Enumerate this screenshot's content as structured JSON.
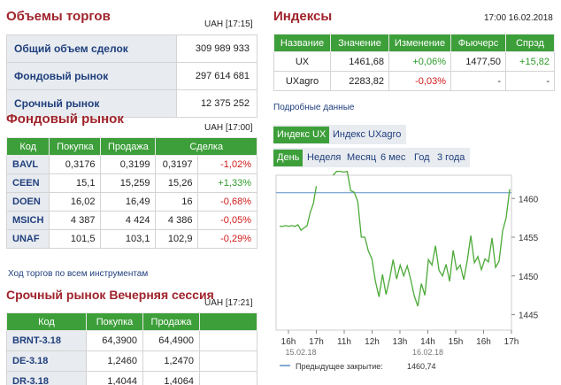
{
  "volumes": {
    "title": "Объемы торгов",
    "meta": "UAH [17:15]",
    "rows": [
      {
        "label": "Общий объем сделок",
        "value": "309 989 933"
      },
      {
        "label": "Фондовый рынок",
        "value": "297 614 681"
      },
      {
        "label": "Срочный рынок",
        "value": "12 375 252"
      }
    ]
  },
  "stock": {
    "title": "Фондовый рынок",
    "meta": "UAH [17:00]",
    "headers": [
      "Код",
      "Покупка",
      "Продажа",
      "Сделка"
    ],
    "rows": [
      {
        "code": "BAVL",
        "buy": "0,3176",
        "sell": "0,3199",
        "deal": "0,3197",
        "change": "-1,02%"
      },
      {
        "code": "CEEN",
        "buy": "15,1",
        "sell": "15,259",
        "deal": "15,26",
        "change": "+1,33%"
      },
      {
        "code": "DOEN",
        "buy": "16,02",
        "sell": "16,49",
        "deal": "16",
        "change": "-0,68%"
      },
      {
        "code": "MSICH",
        "buy": "4 387",
        "sell": "4 424",
        "deal": "4 386",
        "change": "-0,05%"
      },
      {
        "code": "UNAF",
        "buy": "101,5",
        "sell": "103,1",
        "deal": "102,9",
        "change": "-0,29%"
      }
    ],
    "all_link": "Ход торгов по всем инструментам"
  },
  "evening": {
    "title": "Срочный рынок Вечерняя сессия",
    "meta": "UAH [17:21]",
    "headers": [
      "Код",
      "Покупка",
      "Продажа"
    ],
    "rows": [
      {
        "code": "BRNT-3.18",
        "buy": "64,3900",
        "sell": "64,4900"
      },
      {
        "code": "DE-3.18",
        "buy": "1,2460",
        "sell": "1,2470"
      },
      {
        "code": "DR-3.18",
        "buy": "1,4044",
        "sell": "1,4064"
      }
    ]
  },
  "indexes": {
    "title": "Индексы",
    "meta": "17:00 16.02.2018",
    "headers": [
      "Название",
      "Значение",
      "Изменение",
      "Фьючерс",
      "Спрэд"
    ],
    "rows": [
      {
        "name": "UX",
        "value": "1461,68",
        "change": "+0,06%",
        "futures": "1477,50",
        "spread": "+15,82"
      },
      {
        "name": "UXagro",
        "value": "2283,82",
        "change": "-0,03%",
        "futures": "-",
        "spread": "-"
      }
    ],
    "details_link": "Подробные данные",
    "index_tabs": [
      "Индекс UX",
      "Индекс UXagro"
    ],
    "period_tabs": [
      "День",
      "Неделя",
      "Месяц",
      "6 мес",
      "Год",
      "3 года"
    ]
  },
  "chart_data": {
    "type": "line",
    "x_ticks": [
      "16h",
      "17h",
      "11h",
      "12h",
      "13h",
      "14h",
      "15h",
      "16h",
      "17h"
    ],
    "date_labels": [
      "15.02.18",
      "16.02.18"
    ],
    "y_ticks": [
      "1460",
      "1455",
      "1450",
      "1445"
    ],
    "ylim": [
      1443,
      1463
    ],
    "prev_close_label": "Предыдущее закрытие:",
    "prev_close": "1460,74",
    "prev_close_value": 1460.74,
    "series": [
      {
        "values": [
          1456.4,
          1456.4,
          1456.5,
          1456.4,
          1456.5,
          1456.4,
          1456.6,
          1455.9,
          1456.2,
          1456.5,
          1458.2,
          1459.3,
          1461.6
        ]
      },
      {
        "values": [
          1463.0,
          1463.5,
          1463.5,
          1463.4,
          1463.5,
          1461.0,
          1460.8,
          1459.6,
          1455.0,
          1455.0,
          1453.2,
          1452.2,
          1449.3,
          1447.3,
          1450.2,
          1447.6,
          1449.6,
          1452.1,
          1449.6,
          1451.4,
          1450.0,
          1451.3,
          1449.5,
          1447.4,
          1446.1,
          1449.0,
          1447.5,
          1452.1,
          1451.4,
          1453.9,
          1450.7,
          1450.0,
          1451.5,
          1449.3,
          1453.3,
          1450.8,
          1451.4,
          1449.5,
          1452.0,
          1455.2,
          1451.7,
          1452.5,
          1450.8,
          1452.2,
          1451.8,
          1454.9,
          1451.1,
          1451.9,
          1455.8,
          1457.5,
          1461.2
        ]
      }
    ]
  }
}
